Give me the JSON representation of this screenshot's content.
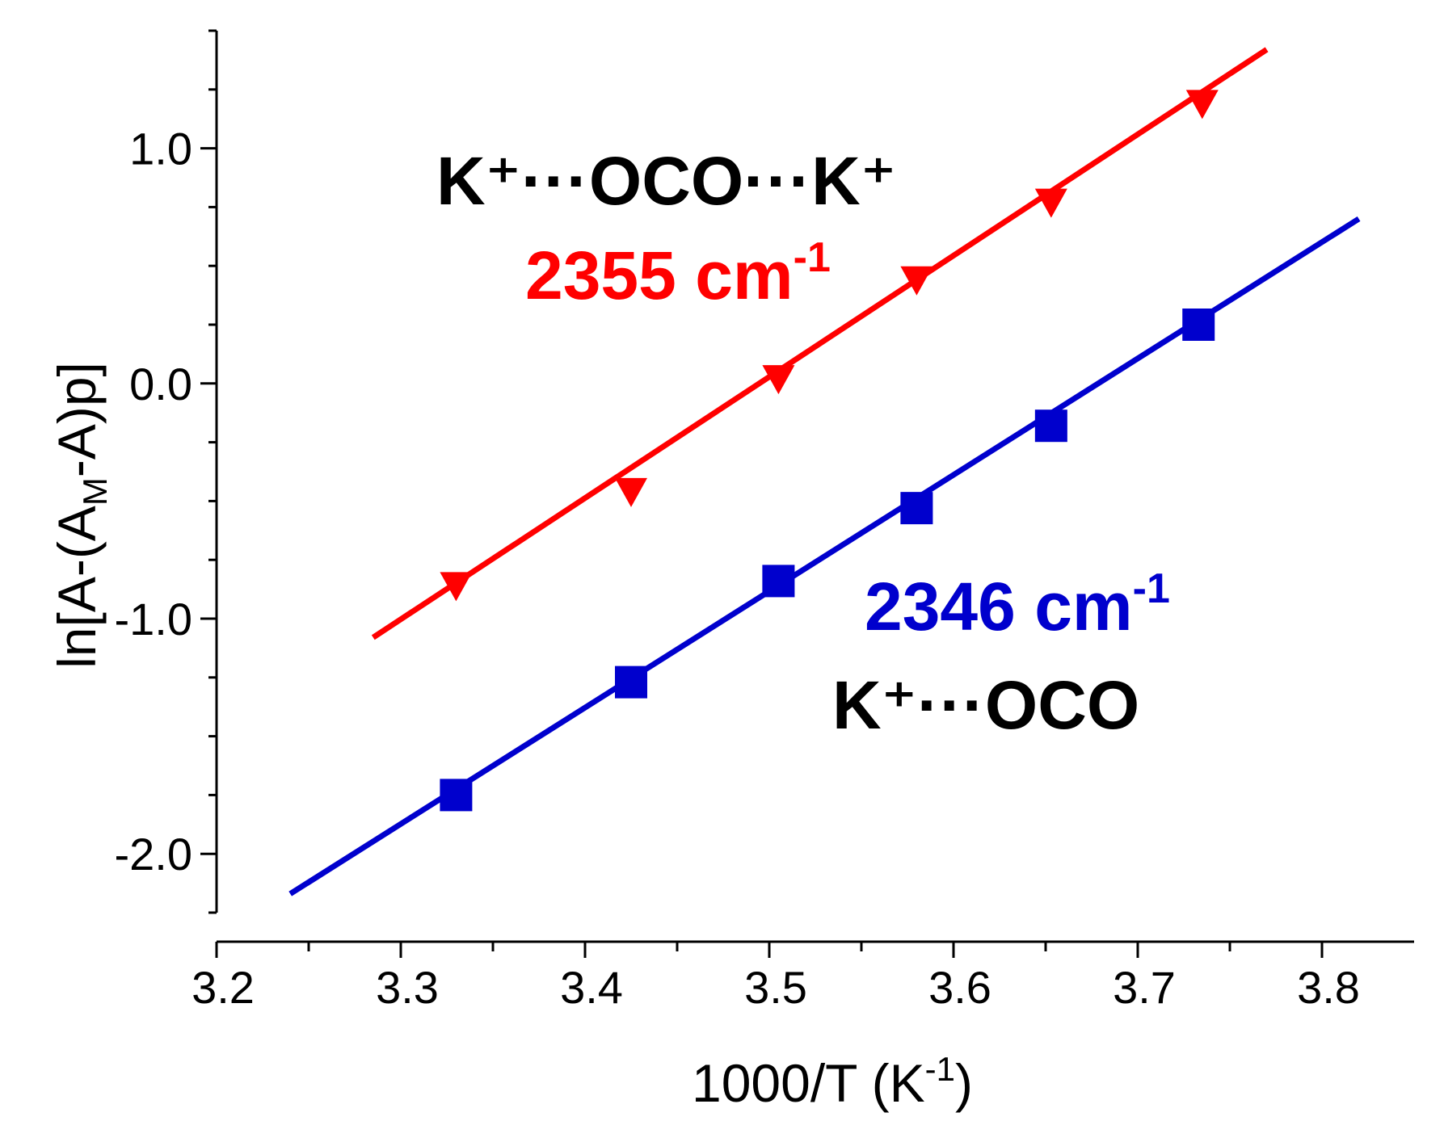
{
  "chart_data": {
    "type": "scatter",
    "title": "",
    "xlabel": "1000/T (K",
    "xlabel_sup": "-1",
    "xlabel_close": ")",
    "ylabel": {
      "main": "ln[A-(A",
      "sub": "M",
      "rest": "-A)p]"
    },
    "xlim": [
      3.2,
      3.85
    ],
    "ylim": [
      -2.25,
      1.5
    ],
    "xticks": [
      3.2,
      3.3,
      3.4,
      3.5,
      3.6,
      3.7,
      3.8
    ],
    "xtick_labels": [
      "3.2",
      "3.3",
      "3.4",
      "3.5",
      "3.6",
      "3.7",
      "3.8"
    ],
    "yticks": [
      -2.0,
      -1.0,
      0.0,
      1.0
    ],
    "ytick_labels": [
      "-2.0",
      "-1.0",
      "0.0",
      "1.0"
    ],
    "grid": false,
    "series": [
      {
        "name": "2355 cm-1",
        "color": "#ff0000",
        "marker": "triangle-down",
        "points": [
          {
            "x": 3.33,
            "y": -0.85
          },
          {
            "x": 3.425,
            "y": -0.45
          },
          {
            "x": 3.505,
            "y": 0.03
          },
          {
            "x": 3.58,
            "y": 0.45
          },
          {
            "x": 3.653,
            "y": 0.78
          },
          {
            "x": 3.735,
            "y": 1.2
          }
        ],
        "fit_line": {
          "x_start": 3.285,
          "y_start": -1.08,
          "x_end": 3.77,
          "y_end": 1.42
        }
      },
      {
        "name": "2346 cm-1",
        "color": "#0000cd",
        "marker": "square",
        "points": [
          {
            "x": 3.33,
            "y": -1.75
          },
          {
            "x": 3.425,
            "y": -1.27
          },
          {
            "x": 3.505,
            "y": -0.84
          },
          {
            "x": 3.58,
            "y": -0.53
          },
          {
            "x": 3.653,
            "y": -0.18
          },
          {
            "x": 3.733,
            "y": 0.25
          }
        ],
        "fit_line": {
          "x_start": 3.24,
          "y_start": -2.17,
          "x_end": 3.82,
          "y_end": 0.7
        }
      }
    ],
    "annotations": [
      {
        "id": "k-oco-k",
        "text": "K⁺···OCO···K⁺",
        "color": "#000000"
      },
      {
        "id": "label-2355",
        "text": "2355 cm",
        "sup": "-1",
        "color": "#ff0000"
      },
      {
        "id": "label-2346",
        "text": "2346 cm",
        "sup": "-1",
        "color": "#0000cd"
      },
      {
        "id": "k-oco",
        "text": "K⁺···OCO",
        "color": "#000000"
      }
    ]
  }
}
